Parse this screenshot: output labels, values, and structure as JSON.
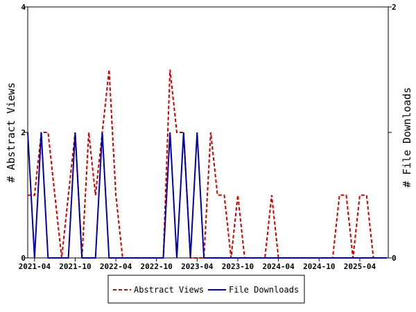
{
  "chart_data": {
    "type": "line",
    "x_tick_labels": [
      "2021-04",
      "2021-10",
      "2022-04",
      "2022-10",
      "2023-04",
      "2023-10",
      "2024-04",
      "2024-10",
      "2025-04"
    ],
    "y_left": {
      "label": "# Abstract Views",
      "ylim": [
        0,
        4
      ],
      "ticks": [
        "0",
        "2",
        "4"
      ]
    },
    "y_right": {
      "label": "# File Downloads",
      "ylim": [
        0,
        2
      ],
      "ticks": [
        "0",
        "1",
        "2"
      ]
    },
    "grid": false,
    "legend_position": "bottom",
    "series": [
      {
        "name": "Abstract Views",
        "axis": "left",
        "color": "#cc0000",
        "dash": "dashed",
        "x": [
          "2021-03",
          "2021-04",
          "2021-05",
          "2021-06",
          "2021-07",
          "2021-08",
          "2021-09",
          "2021-10",
          "2021-11",
          "2021-12",
          "2022-01",
          "2022-02",
          "2022-03",
          "2022-04",
          "2022-05",
          "2022-06",
          "2022-07",
          "2022-08",
          "2022-09",
          "2022-10",
          "2022-11",
          "2022-12",
          "2023-01",
          "2023-02",
          "2023-03",
          "2023-04",
          "2023-05",
          "2023-06",
          "2023-07",
          "2023-08",
          "2023-09",
          "2023-10",
          "2023-11",
          "2023-12",
          "2024-01",
          "2024-02",
          "2024-03",
          "2024-04",
          "2024-05",
          "2024-06",
          "2024-07",
          "2024-08",
          "2024-09",
          "2024-10",
          "2024-11",
          "2024-12",
          "2025-01",
          "2025-02",
          "2025-03",
          "2025-04",
          "2025-05",
          "2025-06",
          "2025-07",
          "2025-08"
        ],
        "values": [
          1,
          1,
          2,
          2,
          1,
          0,
          1,
          2,
          0,
          2,
          1,
          2,
          3,
          1,
          0,
          0,
          0,
          0,
          0,
          0,
          0,
          3,
          2,
          2,
          0,
          0,
          0,
          2,
          1,
          1,
          0,
          1,
          0,
          0,
          0,
          0,
          1,
          0,
          0,
          0,
          0,
          0,
          0,
          0,
          0,
          0,
          1,
          1,
          0,
          1,
          1,
          0,
          0,
          0
        ]
      },
      {
        "name": "File Downloads",
        "axis": "right",
        "color": "#0000aa",
        "dash": "solid",
        "x": [
          "2021-03",
          "2021-04",
          "2021-05",
          "2021-06",
          "2021-07",
          "2021-08",
          "2021-09",
          "2021-10",
          "2021-11",
          "2021-12",
          "2022-01",
          "2022-02",
          "2022-03",
          "2022-04",
          "2022-05",
          "2022-06",
          "2022-07",
          "2022-08",
          "2022-09",
          "2022-10",
          "2022-11",
          "2022-12",
          "2023-01",
          "2023-02",
          "2023-03",
          "2023-04",
          "2023-05",
          "2023-06",
          "2023-07",
          "2023-08",
          "2023-09",
          "2023-10",
          "2023-11",
          "2023-12",
          "2024-01",
          "2024-02",
          "2024-03",
          "2024-04",
          "2024-05",
          "2024-06",
          "2024-07",
          "2024-08",
          "2024-09",
          "2024-10",
          "2024-11",
          "2024-12",
          "2025-01",
          "2025-02",
          "2025-03",
          "2025-04",
          "2025-05",
          "2025-06",
          "2025-07",
          "2025-08"
        ],
        "values": [
          1,
          0,
          1,
          0,
          0,
          0,
          0,
          1,
          0,
          0,
          0,
          1,
          0,
          0,
          0,
          0,
          0,
          0,
          0,
          0,
          0,
          1,
          0,
          1,
          0,
          1,
          0,
          0,
          0,
          0,
          0,
          0,
          0,
          0,
          0,
          0,
          0,
          0,
          0,
          0,
          0,
          0,
          0,
          0,
          0,
          0,
          0,
          0,
          0,
          0,
          0,
          0,
          0,
          0
        ]
      }
    ]
  }
}
